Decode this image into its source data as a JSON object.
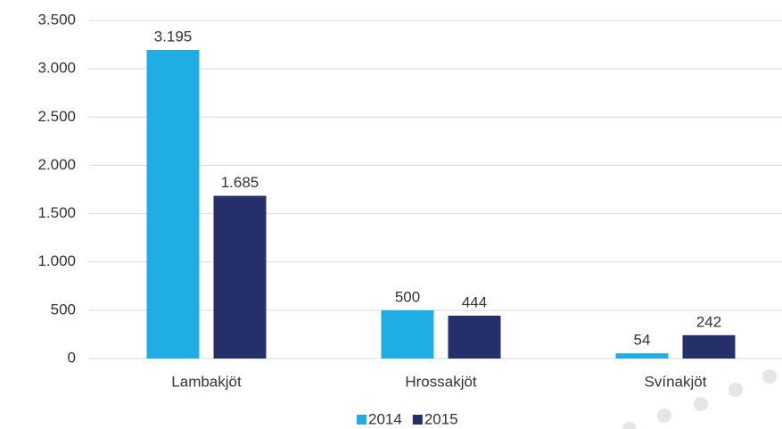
{
  "chart_data": {
    "type": "bar",
    "categories": [
      "Lambakjöt",
      "Hrossakjöt",
      "Svínakjöt"
    ],
    "series": [
      {
        "name": "2014",
        "color": "#1eaee4",
        "values": [
          3195,
          500,
          54
        ],
        "value_labels": [
          "3.195",
          "500",
          "54"
        ]
      },
      {
        "name": "2015",
        "color": "#25306b",
        "values": [
          1685,
          444,
          242
        ],
        "value_labels": [
          "1.685",
          "444",
          "242"
        ]
      }
    ],
    "ylim": [
      0,
      3500
    ],
    "yticks": [
      0,
      500,
      {
        "value": 1000,
        "label": "1.000"
      },
      {
        "value": 1500,
        "label": "1.500"
      },
      {
        "value": 2000,
        "label": "2.000"
      },
      {
        "value": 2500,
        "label": "2.500"
      },
      {
        "value": 3000,
        "label": "3.000"
      },
      {
        "value": 3500,
        "label": "3.500"
      }
    ],
    "grid": true,
    "legend": "bottom"
  }
}
